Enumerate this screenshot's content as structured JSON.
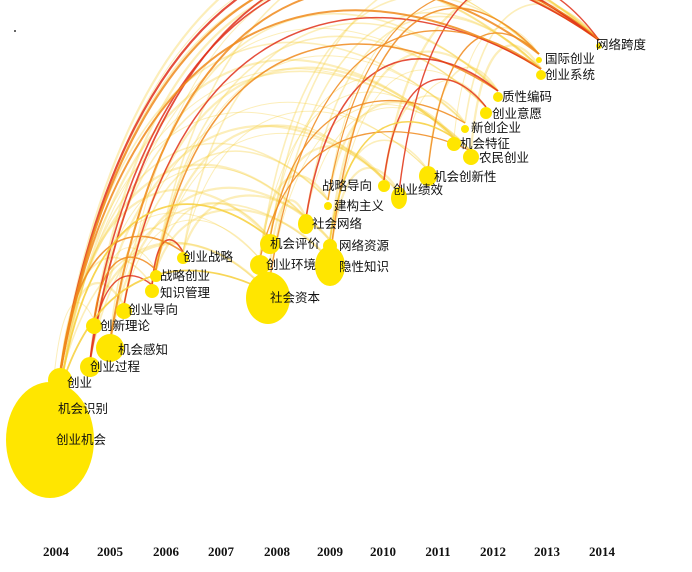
{
  "years": [
    "2004",
    "2005",
    "2006",
    "2007",
    "2008",
    "2009",
    "2010",
    "2011",
    "2012",
    "2013",
    "2014"
  ],
  "nodes": [
    {
      "label": "创业机会",
      "year": "2004"
    },
    {
      "label": "机会识别",
      "year": "2004"
    },
    {
      "label": "创业",
      "year": "2004"
    },
    {
      "label": "创业过程",
      "year": "2005"
    },
    {
      "label": "机会感知",
      "year": "2005"
    },
    {
      "label": "创新理论",
      "year": "2005"
    },
    {
      "label": "创业导向",
      "year": "2005"
    },
    {
      "label": "知识管理",
      "year": "2006"
    },
    {
      "label": "战略创业",
      "year": "2006"
    },
    {
      "label": "创业战略",
      "year": "2006"
    },
    {
      "label": "社会资本",
      "year": "2008"
    },
    {
      "label": "创业环境",
      "year": "2008"
    },
    {
      "label": "机会评价",
      "year": "2008"
    },
    {
      "label": "隐性知识",
      "year": "2009"
    },
    {
      "label": "网络资源",
      "year": "2009"
    },
    {
      "label": "社会网络",
      "year": "2009"
    },
    {
      "label": "建构主义",
      "year": "2009"
    },
    {
      "label": "战略导向",
      "year": "2009"
    },
    {
      "label": "创业绩效",
      "year": "2010"
    },
    {
      "label": "机会创新性",
      "year": "2011"
    },
    {
      "label": "农民创业",
      "year": "2011"
    },
    {
      "label": "机会特征",
      "year": "2011"
    },
    {
      "label": "新创企业",
      "year": "2011"
    },
    {
      "label": "创业意愿",
      "year": "2012"
    },
    {
      "label": "质性编码",
      "year": "2012"
    },
    {
      "label": "创业系统",
      "year": "2013"
    },
    {
      "label": "国际创业",
      "year": "2013"
    },
    {
      "label": "网络跨度",
      "year": "2014"
    }
  ],
  "colors": {
    "node": "#ffe600",
    "arc_red": "#e0301a",
    "arc_orange": "#f08a1c",
    "arc_yellow": "#f7cf3a"
  }
}
